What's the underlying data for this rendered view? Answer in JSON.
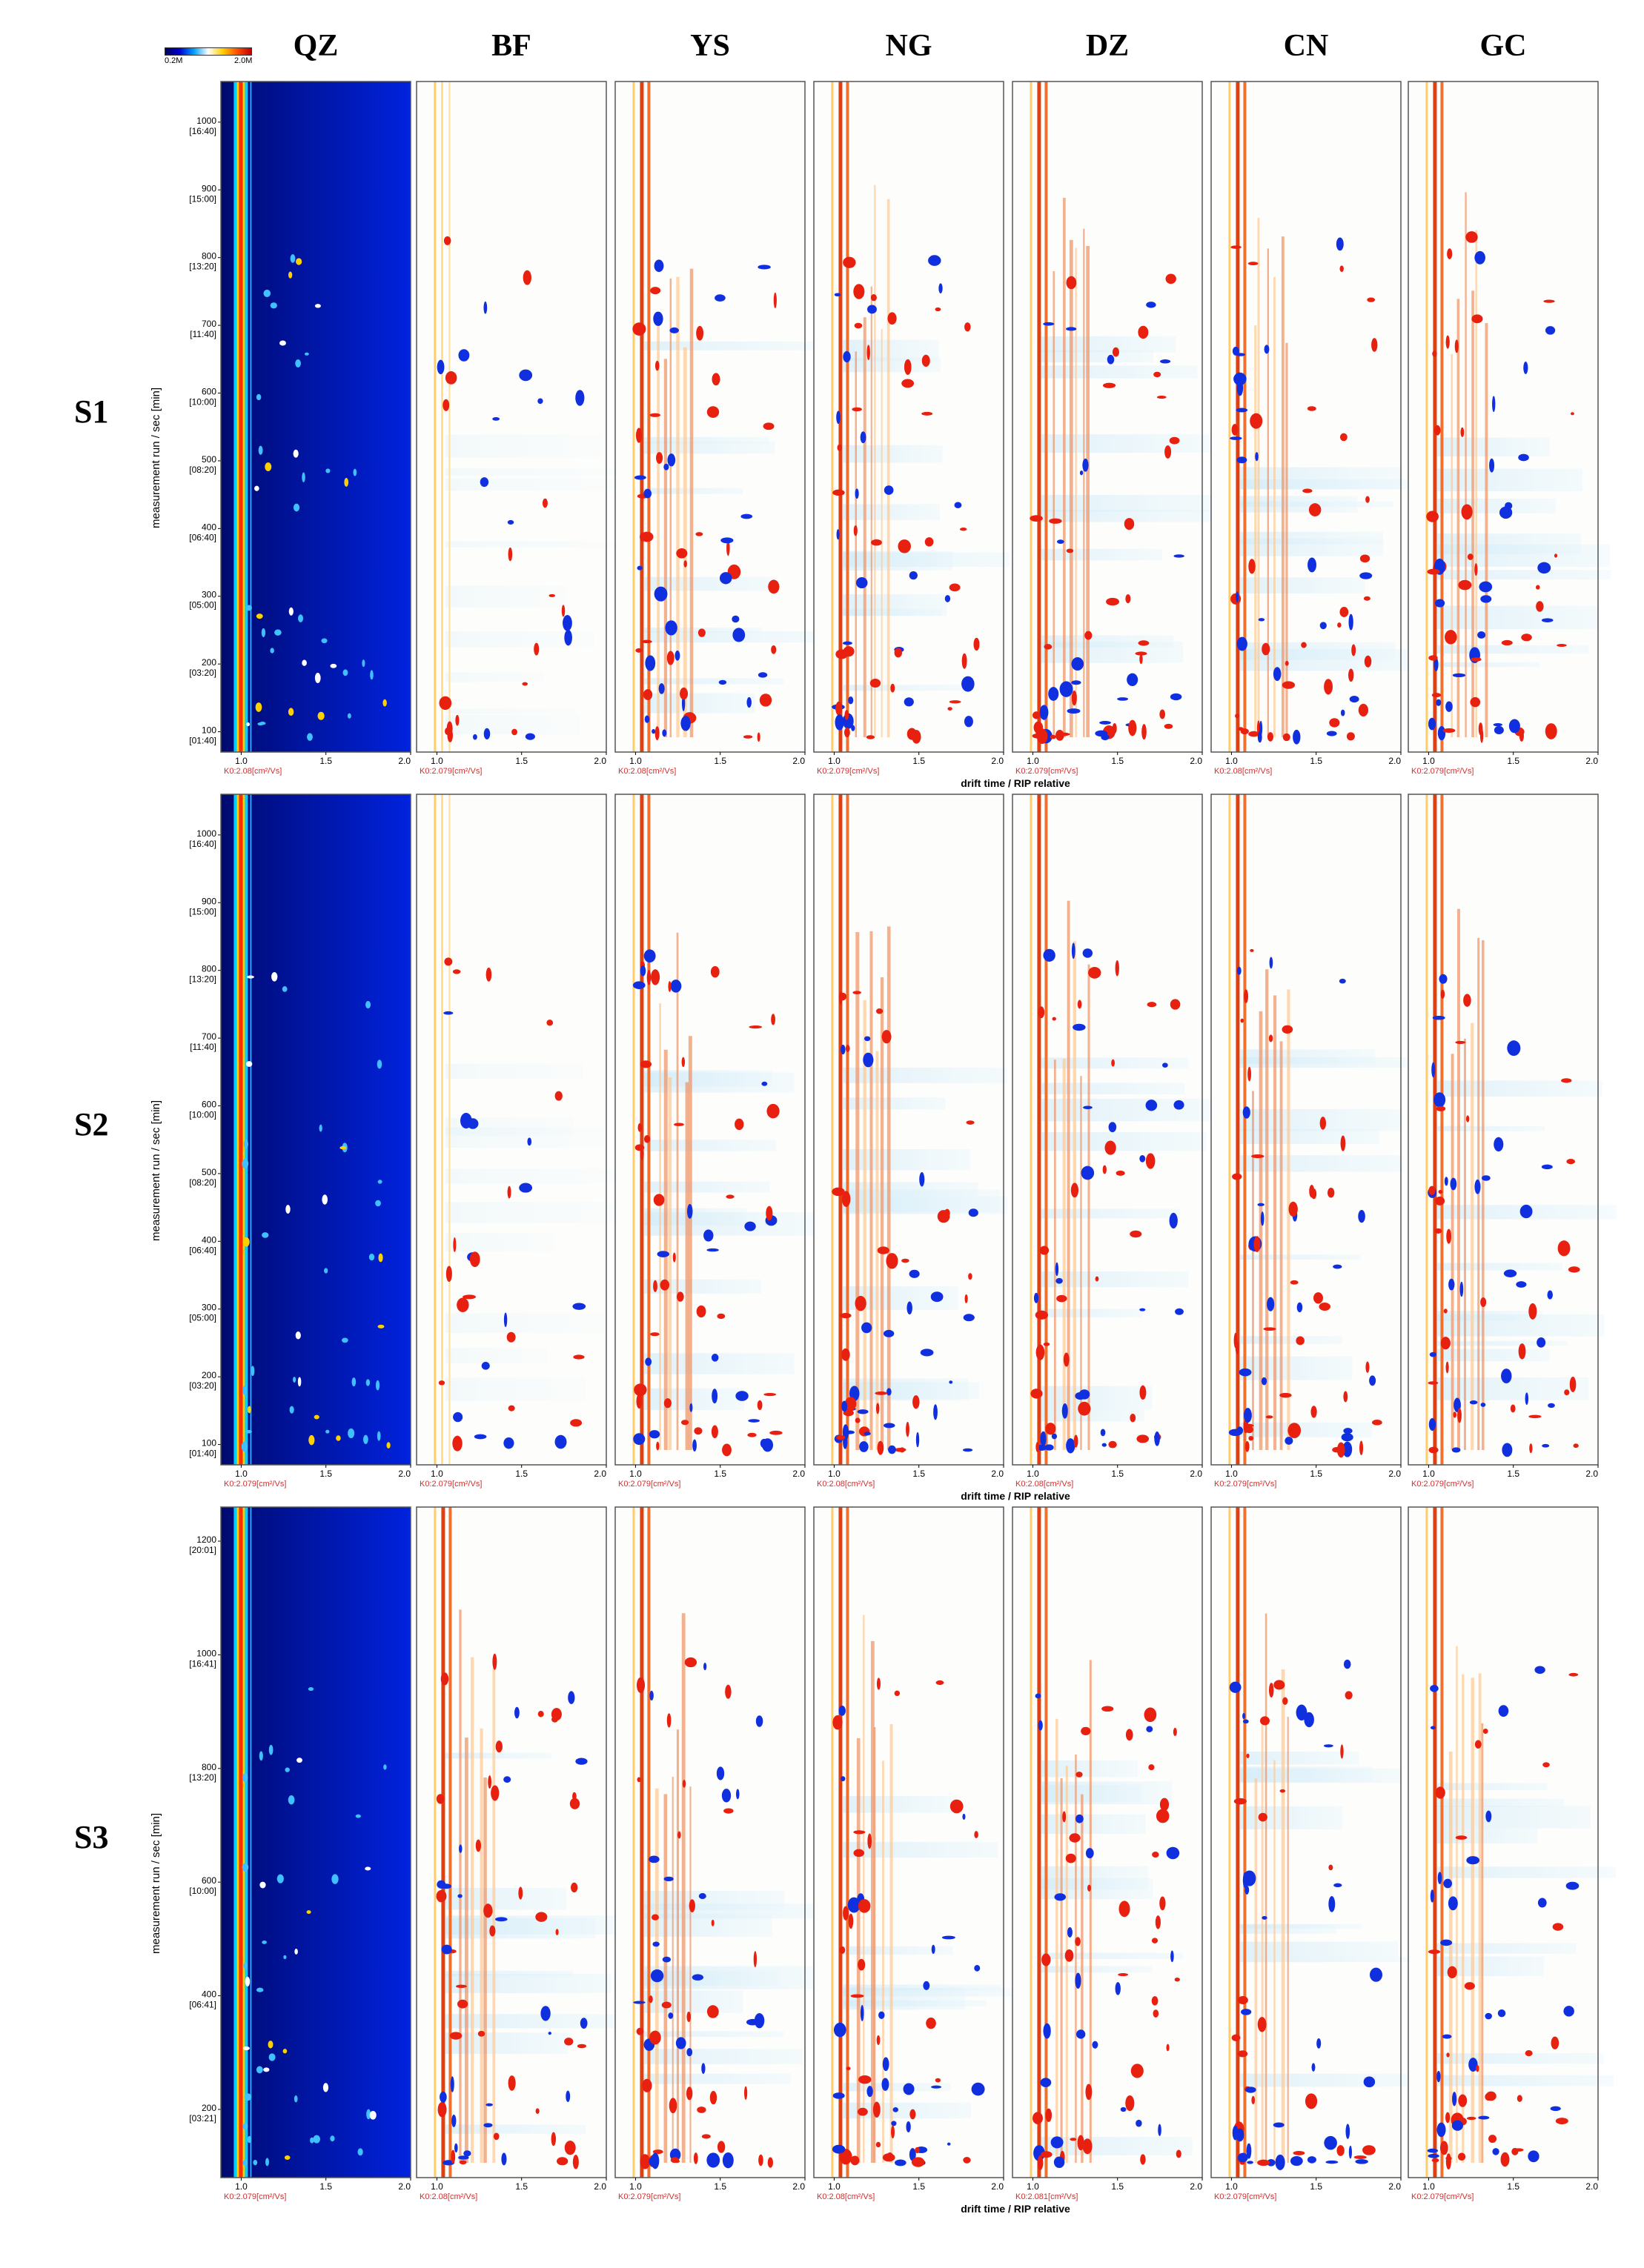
{
  "colorbar": {
    "min_label": "0.2M",
    "max_label": "2.0M"
  },
  "columns": [
    "QZ",
    "BF",
    "YS",
    "NG",
    "DZ",
    "CN",
    "GC"
  ],
  "rows": [
    "S1",
    "S2",
    "S3"
  ],
  "ylabel": "measurement run / sec [min]",
  "xlabel": "drift time / RIP relative",
  "chart_data": {
    "type": "heatmap",
    "x_ticks": [
      "1.0",
      "1.5",
      "2.0"
    ],
    "xlim": [
      0.88,
      2.0
    ],
    "panels": [
      {
        "row": "S1",
        "ylim": [
          70,
          1060
        ],
        "y_ticks": [
          {
            "v": 100,
            "l": "100",
            "s": "[01:40]"
          },
          {
            "v": 200,
            "l": "200",
            "s": "[03:20]"
          },
          {
            "v": 300,
            "l": "300",
            "s": "[05:00]"
          },
          {
            "v": 400,
            "l": "400",
            "s": "[06:40]"
          },
          {
            "v": 500,
            "l": "500",
            "s": "[08:20]"
          },
          {
            "v": 600,
            "l": "600",
            "s": "[10:00]"
          },
          {
            "v": 700,
            "l": "700",
            "s": "[11:40]"
          },
          {
            "v": 800,
            "l": "800",
            "s": "[13:20]"
          },
          {
            "v": 900,
            "l": "900",
            "s": "[15:00]"
          },
          {
            "v": 1000,
            "l": "1000",
            "s": "[16:40]"
          }
        ],
        "k0": [
          "K0:2.08[cm²/Vs]",
          "K0:2.079[cm²/Vs]",
          "K0:2.08[cm²/Vs]",
          "K0:2.079[cm²/Vs]",
          "K0:2.079[cm²/Vs]",
          "K0:2.08[cm²/Vs]",
          "K0:2.079[cm²/Vs]"
        ]
      },
      {
        "row": "S2",
        "ylim": [
          70,
          1060
        ],
        "y_ticks": [
          {
            "v": 100,
            "l": "100",
            "s": "[01:40]"
          },
          {
            "v": 200,
            "l": "200",
            "s": "[03:20]"
          },
          {
            "v": 300,
            "l": "300",
            "s": "[05:00]"
          },
          {
            "v": 400,
            "l": "400",
            "s": "[06:40]"
          },
          {
            "v": 500,
            "l": "500",
            "s": "[08:20]"
          },
          {
            "v": 600,
            "l": "600",
            "s": "[10:00]"
          },
          {
            "v": 700,
            "l": "700",
            "s": "[11:40]"
          },
          {
            "v": 800,
            "l": "800",
            "s": "[13:20]"
          },
          {
            "v": 900,
            "l": "900",
            "s": "[15:00]"
          },
          {
            "v": 1000,
            "l": "1000",
            "s": "[16:40]"
          }
        ],
        "k0": [
          "K0:2.079[cm²/Vs]",
          "K0:2.079[cm²/Vs]",
          "K0:2.079[cm²/Vs]",
          "K0:2.08[cm²/Vs]",
          "K0:2.08[cm²/Vs]",
          "K0:2.079[cm²/Vs]",
          "K0:2.079[cm²/Vs]"
        ]
      },
      {
        "row": "S3",
        "ylim": [
          80,
          1260
        ],
        "y_ticks": [
          {
            "v": 200,
            "l": "200",
            "s": "[03:21]"
          },
          {
            "v": 400,
            "l": "400",
            "s": "[06:41]"
          },
          {
            "v": 600,
            "l": "600",
            "s": "[10:00]"
          },
          {
            "v": 800,
            "l": "800",
            "s": "[13:20]"
          },
          {
            "v": 1000,
            "l": "1000",
            "s": "[16:41]"
          },
          {
            "v": 1200,
            "l": "1200",
            "s": "[20:01]"
          }
        ],
        "k0": [
          "K0:2.079[cm²/Vs]",
          "K0:2.08[cm²/Vs]",
          "K0:2.079[cm²/Vs]",
          "K0:2.08[cm²/Vs]",
          "K0:2.081[cm²/Vs]",
          "K0:2.079[cm²/Vs]",
          "K0:2.079[cm²/Vs]"
        ]
      }
    ],
    "legend": "top-left",
    "grid": false
  }
}
